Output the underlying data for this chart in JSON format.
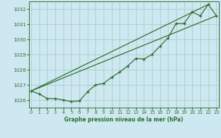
{
  "title": "Graphe pression niveau de la mer (hPa)",
  "bg_color": "#cde8f0",
  "grid_color": "#aacccc",
  "line_color": "#2d6e2d",
  "marker_color": "#2d6e2d",
  "xlim": [
    -0.3,
    23.3
  ],
  "ylim": [
    1025.5,
    1032.5
  ],
  "xticks": [
    0,
    1,
    2,
    3,
    4,
    5,
    6,
    7,
    8,
    9,
    10,
    11,
    12,
    13,
    14,
    15,
    16,
    17,
    18,
    19,
    20,
    21,
    22,
    23
  ],
  "yticks": [
    1026,
    1027,
    1028,
    1029,
    1030,
    1031,
    1032
  ],
  "series_x": [
    0,
    1,
    2,
    3,
    4,
    5,
    6,
    7,
    8,
    9,
    10,
    11,
    12,
    13,
    14,
    15,
    16,
    17,
    18,
    19,
    20,
    21,
    22,
    23
  ],
  "series_y": [
    1026.6,
    1026.4,
    1026.1,
    1026.1,
    1026.0,
    1025.9,
    1025.95,
    1026.55,
    1027.0,
    1027.1,
    1027.5,
    1027.85,
    1028.25,
    1028.75,
    1028.7,
    1029.0,
    1029.55,
    1030.1,
    1031.05,
    1031.05,
    1031.8,
    1031.55,
    1032.3,
    1031.55
  ],
  "line1_x": [
    0,
    22
  ],
  "line1_y": [
    1026.6,
    1032.3
  ],
  "line2_x": [
    0,
    23
  ],
  "line2_y": [
    1026.6,
    1031.55
  ]
}
